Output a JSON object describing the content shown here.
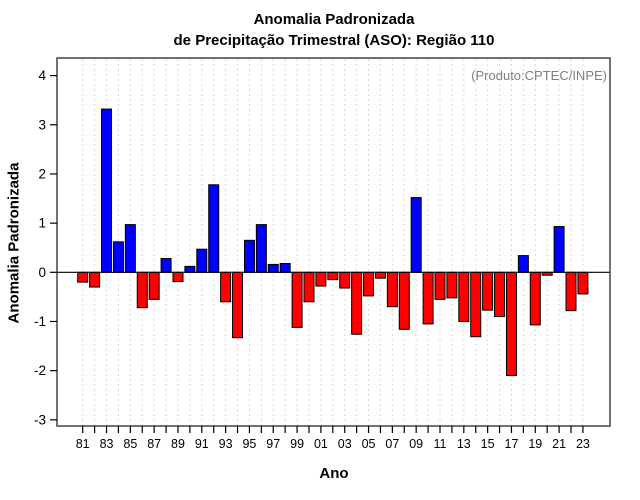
{
  "chart_data": {
    "type": "bar",
    "title_line1": "Anomalia Padronizada",
    "title_line2": "de Precipitação Trimestral (ASO): Região 110",
    "xlabel": "Ano",
    "ylabel": "Anomalia Padronizada",
    "annotation": "(Produto:CPTEC/INPE)",
    "categories": [
      "81",
      "82",
      "83",
      "84",
      "85",
      "86",
      "87",
      "88",
      "89",
      "90",
      "91",
      "92",
      "93",
      "94",
      "95",
      "96",
      "97",
      "98",
      "99",
      "00",
      "01",
      "02",
      "03",
      "04",
      "05",
      "06",
      "07",
      "08",
      "09",
      "10",
      "11",
      "12",
      "13",
      "14",
      "15",
      "16",
      "17",
      "18",
      "19",
      "20",
      "21",
      "22",
      "23"
    ],
    "values": [
      -0.2,
      -0.3,
      3.32,
      0.62,
      0.97,
      -0.72,
      -0.55,
      0.28,
      -0.19,
      0.12,
      0.47,
      1.78,
      -0.6,
      -1.33,
      0.65,
      0.97,
      0.16,
      0.18,
      -1.12,
      -0.6,
      -0.28,
      -0.15,
      -0.32,
      -1.26,
      -0.48,
      -0.12,
      -0.7,
      -1.16,
      1.52,
      -1.05,
      -0.55,
      -0.52,
      -1.0,
      -1.31,
      -0.77,
      -0.9,
      -2.1,
      0.34,
      -1.07,
      -0.06,
      0.93,
      -0.78,
      -0.44
    ],
    "xtick_labels": [
      "81",
      "83",
      "85",
      "87",
      "89",
      "91",
      "93",
      "95",
      "97",
      "99",
      "01",
      "03",
      "05",
      "07",
      "09",
      "11",
      "13",
      "15",
      "17",
      "19",
      "21",
      "23"
    ],
    "yticks": [
      -3,
      -2,
      -1,
      0,
      1,
      2,
      3,
      4
    ],
    "ylim": [
      -3.13,
      4.36
    ],
    "colors": {
      "positive": "#0000ff",
      "negative": "#ff0000"
    },
    "grid": "vertical-dashed",
    "legend": "none"
  }
}
